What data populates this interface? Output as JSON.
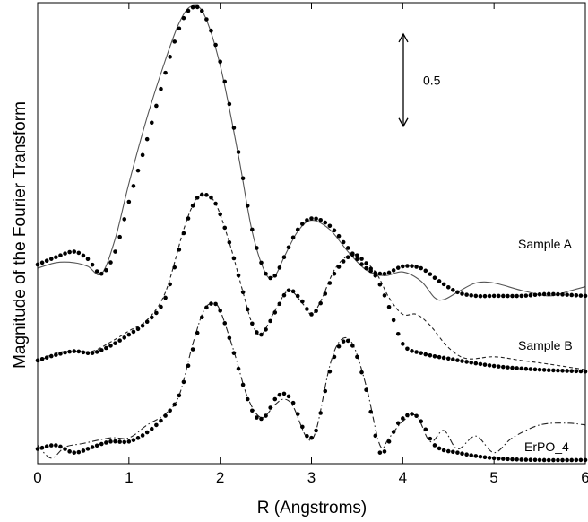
{
  "chart_data": {
    "type": "line",
    "title": "",
    "xlabel": "R (Angstroms)",
    "ylabel": "Magnitude of the Fourier Transform",
    "xlim": [
      0,
      6
    ],
    "x_ticks": [
      "0",
      "1",
      "2",
      "3",
      "4",
      "5",
      "6"
    ],
    "y_ticks": [],
    "grid": false,
    "scale_bar": {
      "label": "0.5",
      "value": 0.5
    },
    "series": [
      {
        "name": "Sample A",
        "data_style": "dots",
        "fit_style": "solid",
        "data": [
          [
            0,
            0.38
          ],
          [
            0.2,
            0.42
          ],
          [
            0.4,
            0.45
          ],
          [
            0.55,
            0.41
          ],
          [
            0.7,
            0.33
          ],
          [
            0.85,
            0.45
          ],
          [
            1.0,
            0.72
          ],
          [
            1.2,
            1.06
          ],
          [
            1.4,
            1.42
          ],
          [
            1.55,
            1.66
          ],
          [
            1.68,
            1.77
          ],
          [
            1.82,
            1.74
          ],
          [
            2.0,
            1.48
          ],
          [
            2.2,
            0.99
          ],
          [
            2.35,
            0.57
          ],
          [
            2.5,
            0.33
          ],
          [
            2.6,
            0.32
          ],
          [
            2.7,
            0.42
          ],
          [
            2.85,
            0.57
          ],
          [
            3.0,
            0.63
          ],
          [
            3.2,
            0.59
          ],
          [
            3.4,
            0.47
          ],
          [
            3.6,
            0.36
          ],
          [
            3.8,
            0.33
          ],
          [
            4.0,
            0.37
          ],
          [
            4.2,
            0.36
          ],
          [
            4.4,
            0.29
          ],
          [
            4.6,
            0.23
          ],
          [
            4.8,
            0.21
          ],
          [
            5.0,
            0.21
          ],
          [
            5.3,
            0.21
          ],
          [
            5.6,
            0.22
          ],
          [
            6.0,
            0.21
          ]
        ],
        "fit": [
          [
            0,
            0.36
          ],
          [
            0.2,
            0.39
          ],
          [
            0.4,
            0.39
          ],
          [
            0.55,
            0.37
          ],
          [
            0.7,
            0.33
          ],
          [
            0.85,
            0.52
          ],
          [
            1.0,
            0.82
          ],
          [
            1.2,
            1.18
          ],
          [
            1.4,
            1.49
          ],
          [
            1.55,
            1.69
          ],
          [
            1.68,
            1.78
          ],
          [
            1.82,
            1.74
          ],
          [
            2.0,
            1.46
          ],
          [
            2.2,
            0.97
          ],
          [
            2.35,
            0.56
          ],
          [
            2.5,
            0.33
          ],
          [
            2.6,
            0.32
          ],
          [
            2.7,
            0.42
          ],
          [
            2.85,
            0.56
          ],
          [
            3.0,
            0.62
          ],
          [
            3.2,
            0.57
          ],
          [
            3.4,
            0.45
          ],
          [
            3.6,
            0.35
          ],
          [
            3.8,
            0.32
          ],
          [
            4.0,
            0.34
          ],
          [
            4.2,
            0.29
          ],
          [
            4.35,
            0.2
          ],
          [
            4.45,
            0.19
          ],
          [
            4.6,
            0.23
          ],
          [
            4.8,
            0.28
          ],
          [
            5.0,
            0.28
          ],
          [
            5.3,
            0.24
          ],
          [
            5.6,
            0.21
          ],
          [
            5.85,
            0.24
          ],
          [
            6.0,
            0.26
          ]
        ]
      },
      {
        "name": "Sample B",
        "data_style": "dots",
        "fit_style": "dashed",
        "data": [
          [
            0,
            -0.14
          ],
          [
            0.2,
            -0.11
          ],
          [
            0.4,
            -0.09
          ],
          [
            0.6,
            -0.1
          ],
          [
            0.8,
            -0.06
          ],
          [
            1.0,
            0.0
          ],
          [
            1.2,
            0.07
          ],
          [
            1.4,
            0.2
          ],
          [
            1.6,
            0.55
          ],
          [
            1.72,
            0.72
          ],
          [
            1.82,
            0.76
          ],
          [
            1.95,
            0.71
          ],
          [
            2.1,
            0.5
          ],
          [
            2.25,
            0.23
          ],
          [
            2.35,
            0.06
          ],
          [
            2.45,
            0.0
          ],
          [
            2.6,
            0.12
          ],
          [
            2.75,
            0.24
          ],
          [
            2.9,
            0.18
          ],
          [
            3.0,
            0.11
          ],
          [
            3.1,
            0.17
          ],
          [
            3.25,
            0.33
          ],
          [
            3.4,
            0.42
          ],
          [
            3.5,
            0.43
          ],
          [
            3.7,
            0.32
          ],
          [
            3.85,
            0.15
          ],
          [
            4.0,
            -0.05
          ],
          [
            4.2,
            -0.1
          ],
          [
            4.5,
            -0.13
          ],
          [
            5.0,
            -0.17
          ],
          [
            5.5,
            -0.19
          ],
          [
            6.0,
            -0.2
          ]
        ],
        "fit": [
          [
            0,
            -0.15
          ],
          [
            0.2,
            -0.1
          ],
          [
            0.4,
            -0.09
          ],
          [
            0.6,
            -0.09
          ],
          [
            0.8,
            -0.04
          ],
          [
            1.0,
            0.02
          ],
          [
            1.2,
            0.08
          ],
          [
            1.4,
            0.23
          ],
          [
            1.6,
            0.57
          ],
          [
            1.72,
            0.72
          ],
          [
            1.82,
            0.76
          ],
          [
            1.95,
            0.71
          ],
          [
            2.1,
            0.5
          ],
          [
            2.25,
            0.23
          ],
          [
            2.35,
            0.06
          ],
          [
            2.45,
            0.0
          ],
          [
            2.6,
            0.13
          ],
          [
            2.75,
            0.24
          ],
          [
            2.9,
            0.17
          ],
          [
            3.0,
            0.11
          ],
          [
            3.1,
            0.18
          ],
          [
            3.25,
            0.35
          ],
          [
            3.4,
            0.43
          ],
          [
            3.5,
            0.43
          ],
          [
            3.7,
            0.34
          ],
          [
            3.85,
            0.2
          ],
          [
            4.0,
            0.11
          ],
          [
            4.15,
            0.11
          ],
          [
            4.3,
            0.05
          ],
          [
            4.5,
            -0.07
          ],
          [
            4.7,
            -0.13
          ],
          [
            5.0,
            -0.12
          ],
          [
            5.3,
            -0.14
          ],
          [
            5.6,
            -0.16
          ],
          [
            6.0,
            -0.19
          ]
        ]
      },
      {
        "name": "ErPO_4",
        "data_style": "dots",
        "fit_style": "dash-dot",
        "data": [
          [
            0,
            -0.62
          ],
          [
            0.2,
            -0.6
          ],
          [
            0.4,
            -0.64
          ],
          [
            0.6,
            -0.61
          ],
          [
            0.8,
            -0.58
          ],
          [
            1.0,
            -0.58
          ],
          [
            1.2,
            -0.53
          ],
          [
            1.4,
            -0.44
          ],
          [
            1.55,
            -0.33
          ],
          [
            1.7,
            -0.08
          ],
          [
            1.82,
            0.12
          ],
          [
            1.92,
            0.17
          ],
          [
            2.0,
            0.13
          ],
          [
            2.15,
            -0.1
          ],
          [
            2.3,
            -0.35
          ],
          [
            2.4,
            -0.45
          ],
          [
            2.5,
            -0.44
          ],
          [
            2.6,
            -0.35
          ],
          [
            2.7,
            -0.32
          ],
          [
            2.8,
            -0.37
          ],
          [
            2.95,
            -0.55
          ],
          [
            3.05,
            -0.52
          ],
          [
            3.2,
            -0.2
          ],
          [
            3.32,
            -0.05
          ],
          [
            3.45,
            -0.06
          ],
          [
            3.6,
            -0.3
          ],
          [
            3.75,
            -0.64
          ],
          [
            3.85,
            -0.58
          ],
          [
            3.95,
            -0.48
          ],
          [
            4.1,
            -0.43
          ],
          [
            4.2,
            -0.47
          ],
          [
            4.35,
            -0.6
          ],
          [
            4.6,
            -0.64
          ],
          [
            5.0,
            -0.67
          ],
          [
            5.5,
            -0.68
          ],
          [
            6.0,
            -0.68
          ]
        ],
        "fit": [
          [
            0,
            -0.6
          ],
          [
            0.15,
            -0.67
          ],
          [
            0.3,
            -0.61
          ],
          [
            0.5,
            -0.59
          ],
          [
            0.8,
            -0.56
          ],
          [
            1.0,
            -0.56
          ],
          [
            1.2,
            -0.49
          ],
          [
            1.4,
            -0.43
          ],
          [
            1.55,
            -0.33
          ],
          [
            1.7,
            -0.05
          ],
          [
            1.82,
            0.13
          ],
          [
            1.92,
            0.17
          ],
          [
            2.0,
            0.13
          ],
          [
            2.15,
            -0.09
          ],
          [
            2.3,
            -0.34
          ],
          [
            2.45,
            -0.45
          ],
          [
            2.6,
            -0.38
          ],
          [
            2.7,
            -0.35
          ],
          [
            2.8,
            -0.39
          ],
          [
            2.95,
            -0.56
          ],
          [
            3.05,
            -0.52
          ],
          [
            3.2,
            -0.17
          ],
          [
            3.32,
            -0.03
          ],
          [
            3.45,
            -0.05
          ],
          [
            3.6,
            -0.28
          ],
          [
            3.75,
            -0.6
          ],
          [
            3.85,
            -0.56
          ],
          [
            4.0,
            -0.47
          ],
          [
            4.15,
            -0.44
          ],
          [
            4.3,
            -0.58
          ],
          [
            4.45,
            -0.52
          ],
          [
            4.6,
            -0.62
          ],
          [
            4.8,
            -0.55
          ],
          [
            5.0,
            -0.64
          ],
          [
            5.2,
            -0.56
          ],
          [
            5.5,
            -0.49
          ],
          [
            5.8,
            -0.48
          ],
          [
            6.0,
            -0.49
          ]
        ]
      }
    ]
  }
}
